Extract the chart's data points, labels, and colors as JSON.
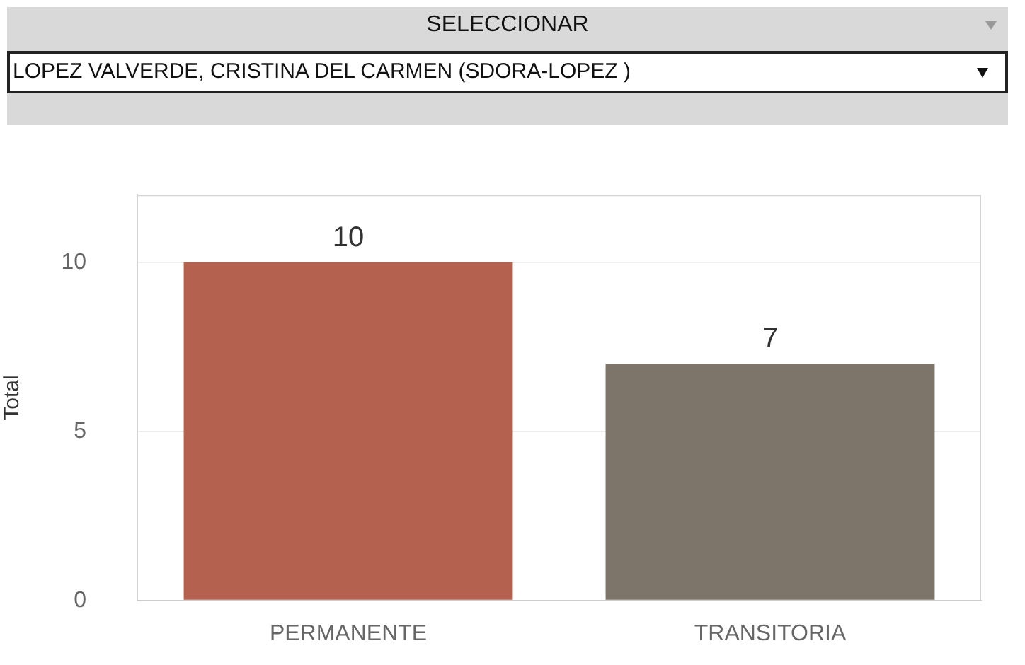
{
  "chart_data": {
    "type": "bar",
    "annotations": [
      "SELECCIONAR",
      "LOPEZ VALVERDE, CRISTINA DEL CARMEN (SDORA-LOPEZ )"
    ],
    "categories": [
      "PERMANENTE",
      "TRANSITORIA"
    ],
    "values": [
      10,
      7
    ],
    "colors": [
      "#b5614f",
      "#7d746a"
    ],
    "ylabel": "Total",
    "ylim": [
      0,
      12
    ],
    "yticks": [
      0,
      5,
      10
    ],
    "grid": "y",
    "data_labels": true
  }
}
